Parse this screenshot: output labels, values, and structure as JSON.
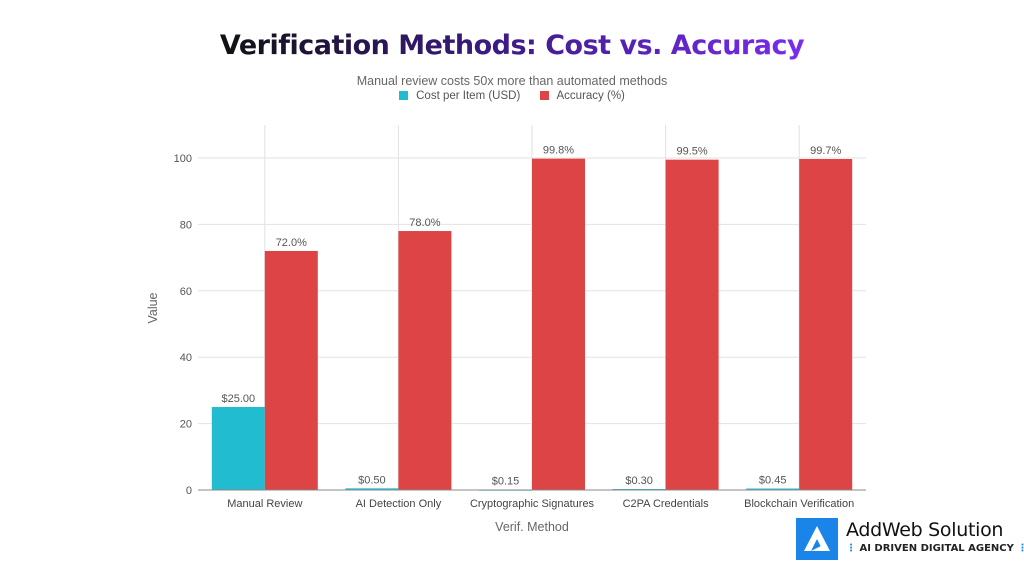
{
  "chart_data": {
    "type": "bar",
    "title": "Verification Methods: Cost vs. Accuracy",
    "subtitle": "Manual review costs 50x more than automated methods",
    "xlabel": "Verif. Method",
    "ylabel": "Value",
    "ylim": [
      0,
      100
    ],
    "yticks": [
      0,
      20,
      40,
      60,
      80,
      100
    ],
    "grid": true,
    "legend_position": "top",
    "categories": [
      "Manual Review",
      "AI Detection Only",
      "Cryptographic Signatures",
      "C2PA Credentials",
      "Blockchain Verification"
    ],
    "series": [
      {
        "name": "Cost per Item (USD)",
        "color": "#22bcd0",
        "values": [
          25.0,
          0.5,
          0.15,
          0.3,
          0.45
        ],
        "labels": [
          "$25.00",
          "$0.50",
          "$0.15",
          "$0.30",
          "$0.45"
        ]
      },
      {
        "name": "Accuracy (%)",
        "color": "#dc4446",
        "values": [
          72.0,
          78.0,
          99.8,
          99.5,
          99.7
        ],
        "labels": [
          "72.0%",
          "78.0%",
          "99.8%",
          "99.5%",
          "99.7%"
        ]
      }
    ]
  },
  "logo": {
    "name": "AddWeb Solution",
    "tagline": "AI DRIVEN DIGITAL AGENCY"
  }
}
